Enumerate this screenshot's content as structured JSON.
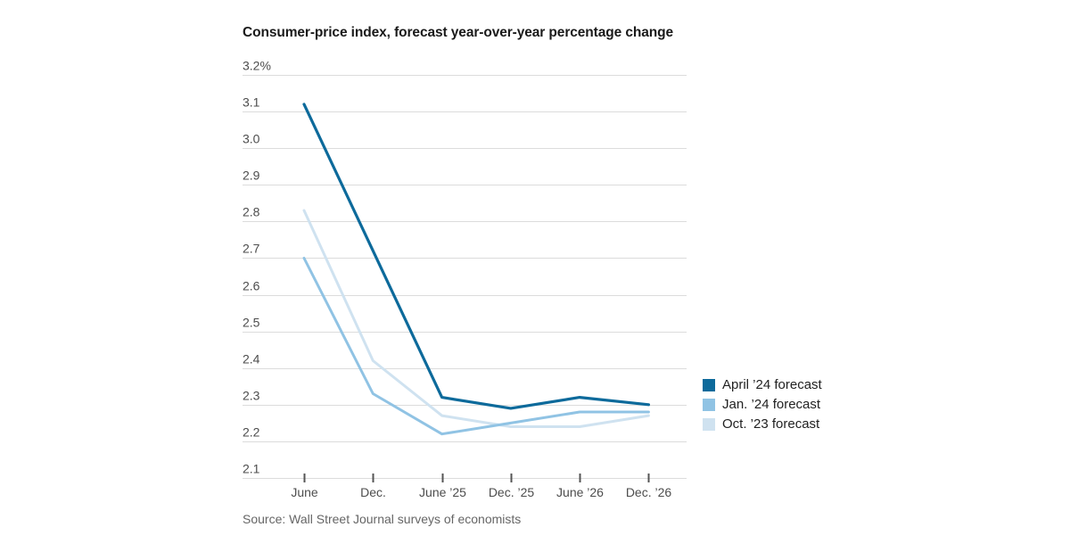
{
  "chart": {
    "title": "Consumer-price index, forecast year-over-year percentage change",
    "source": "Source: Wall Street Journal surveys of economists"
  },
  "chart_data": {
    "type": "line",
    "title": "Consumer-price index, forecast year-over-year percentage change",
    "source": "Source: Wall Street Journal surveys of economists",
    "categories": [
      "June",
      "Dec.",
      "June ’25",
      "Dec. ’25",
      "June ’26",
      "Dec. ’26"
    ],
    "series": [
      {
        "name": "April ’24 forecast",
        "color": "#0d6a9b",
        "stroke_width": 3.2,
        "values": [
          3.12,
          2.72,
          2.32,
          2.29,
          2.32,
          2.3
        ]
      },
      {
        "name": "Jan. ’24 forecast",
        "color": "#90c3e4",
        "stroke_width": 3,
        "values": [
          2.7,
          2.33,
          2.22,
          2.25,
          2.28,
          2.28
        ]
      },
      {
        "name": "Oct. ’23 forecast",
        "color": "#cfe2f0",
        "stroke_width": 3,
        "values": [
          2.83,
          2.42,
          2.27,
          2.24,
          2.24,
          2.27
        ]
      }
    ],
    "y_axis": {
      "min": 2.1,
      "max": 3.2,
      "step": 0.1,
      "top_label_suffix": "%"
    },
    "grid": true,
    "legend_position": "right",
    "colors": {
      "gridline": "#dcdcdc",
      "tick": "#555555",
      "axis_label": "#4d4d4d"
    }
  }
}
